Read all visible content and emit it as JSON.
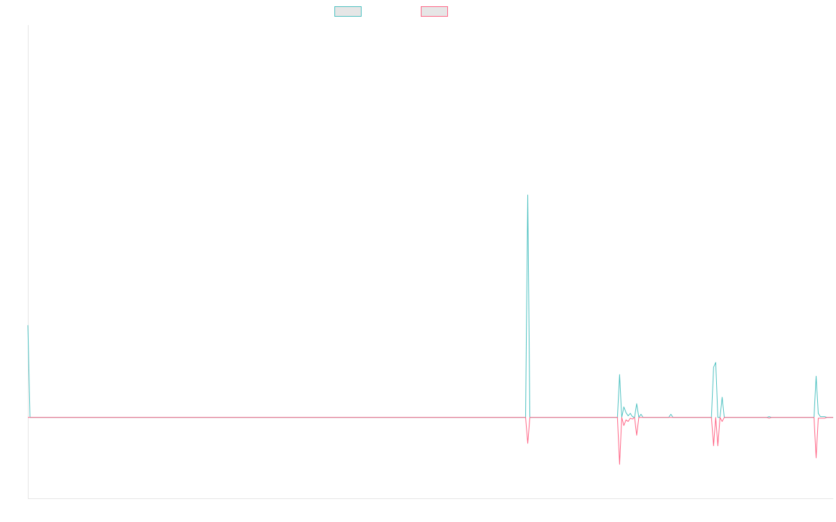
{
  "chart_data": {
    "type": "line",
    "title": "",
    "xlabel": "",
    "ylabel": "",
    "grid": false,
    "legend_position": "top-center",
    "x_count": 378,
    "ylim": [
      -1,
      4.85
    ],
    "series": [
      {
        "name": "",
        "color": "#4bc0c0",
        "fill": "#e6e6e6",
        "points": [
          [
            0,
            1.14
          ],
          [
            1,
            0
          ],
          [
            233,
            0
          ],
          [
            234,
            2.75
          ],
          [
            235,
            0
          ],
          [
            276,
            0
          ],
          [
            277,
            0.53
          ],
          [
            278,
            0
          ],
          [
            279,
            0.13
          ],
          [
            280,
            0.06
          ],
          [
            281,
            0.02
          ],
          [
            282,
            0.05
          ],
          [
            283,
            0.01
          ],
          [
            284,
            0
          ],
          [
            285,
            0.17
          ],
          [
            286,
            0
          ],
          [
            287,
            0.04
          ],
          [
            288,
            0
          ],
          [
            300,
            0
          ],
          [
            301,
            0.04
          ],
          [
            302,
            0
          ],
          [
            320,
            0
          ],
          [
            321,
            0.62
          ],
          [
            322,
            0.68
          ],
          [
            323,
            0
          ],
          [
            324,
            0
          ],
          [
            325,
            0.25
          ],
          [
            326,
            0
          ],
          [
            346,
            0
          ],
          [
            347,
            0.01
          ],
          [
            348,
            0
          ],
          [
            368,
            0
          ],
          [
            369,
            0.51
          ],
          [
            370,
            0.05
          ],
          [
            371,
            0.01
          ],
          [
            373,
            0.01
          ],
          [
            374,
            0
          ],
          [
            377,
            0
          ]
        ]
      },
      {
        "name": "",
        "color": "#ff6384",
        "fill": "#e6e6e6",
        "points": [
          [
            0,
            0
          ],
          [
            233,
            0
          ],
          [
            234,
            -0.32
          ],
          [
            235,
            0
          ],
          [
            276,
            0
          ],
          [
            277,
            -0.58
          ],
          [
            278,
            0
          ],
          [
            279,
            -0.1
          ],
          [
            280,
            -0.03
          ],
          [
            281,
            -0.05
          ],
          [
            282,
            -0.01
          ],
          [
            283,
            -0.02
          ],
          [
            284,
            0
          ],
          [
            285,
            -0.22
          ],
          [
            286,
            0
          ],
          [
            320,
            0
          ],
          [
            321,
            -0.35
          ],
          [
            322,
            0
          ],
          [
            323,
            -0.35
          ],
          [
            324,
            0
          ],
          [
            325,
            -0.05
          ],
          [
            326,
            0
          ],
          [
            346,
            0
          ],
          [
            347,
            -0.01
          ],
          [
            348,
            0
          ],
          [
            368,
            0
          ],
          [
            369,
            -0.5
          ],
          [
            370,
            -0.01
          ],
          [
            371,
            -0.01
          ],
          [
            373,
            -0.01
          ],
          [
            374,
            0
          ],
          [
            377,
            0
          ]
        ]
      }
    ]
  }
}
